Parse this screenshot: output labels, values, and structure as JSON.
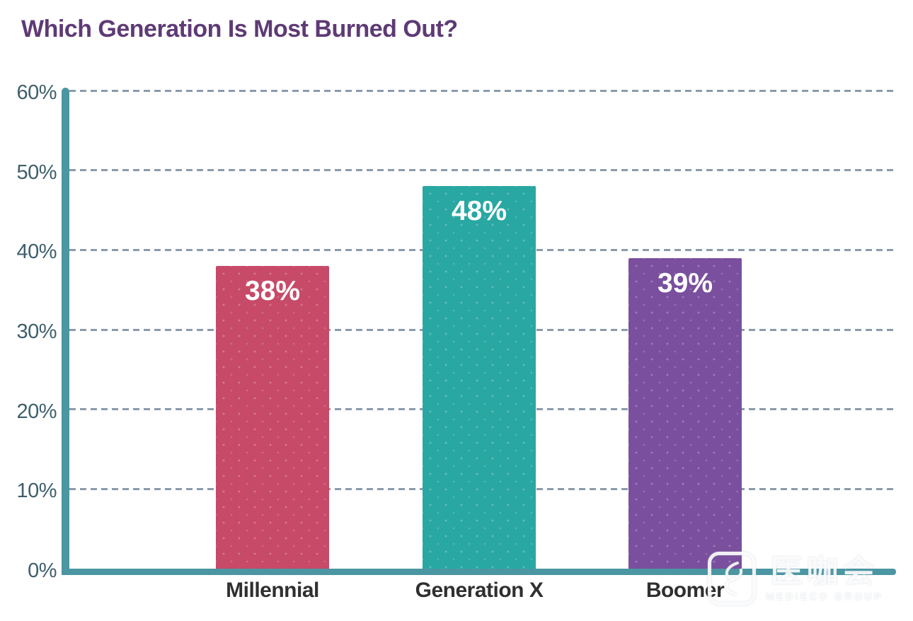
{
  "page": {
    "background": "#ffffff"
  },
  "chart_data": {
    "type": "bar",
    "title": "Which Generation Is Most Burned Out?",
    "categories": [
      "Millennial",
      "Generation X",
      "Boomer"
    ],
    "values": [
      38,
      48,
      39
    ],
    "data_labels": [
      "38%",
      "48%",
      "39%"
    ],
    "series_colors": [
      "#c74a68",
      "#29a7a2",
      "#7a4f9d"
    ],
    "xlabel": "",
    "ylabel": "",
    "ylim": [
      0,
      60
    ],
    "yticks": [
      0,
      10,
      20,
      30,
      40,
      50,
      60
    ],
    "ytick_labels": [
      "0%",
      "10%",
      "20%",
      "30%",
      "40%",
      "50%",
      "60%"
    ],
    "grid": "horizontal-dashed",
    "legend": "none",
    "colors": {
      "title_text": "#5e3a75",
      "axis": "#4a96a2",
      "gridline": "#8a9bab",
      "ytick_text": "#3f5e6d",
      "xtick_text": "#2f2f2f",
      "bar_label_text": "#ffffff"
    }
  },
  "watermark": {
    "logo": "medieco-logo",
    "cjk_text": "医咖会",
    "sub_text": "MEDIECO GROUP"
  }
}
